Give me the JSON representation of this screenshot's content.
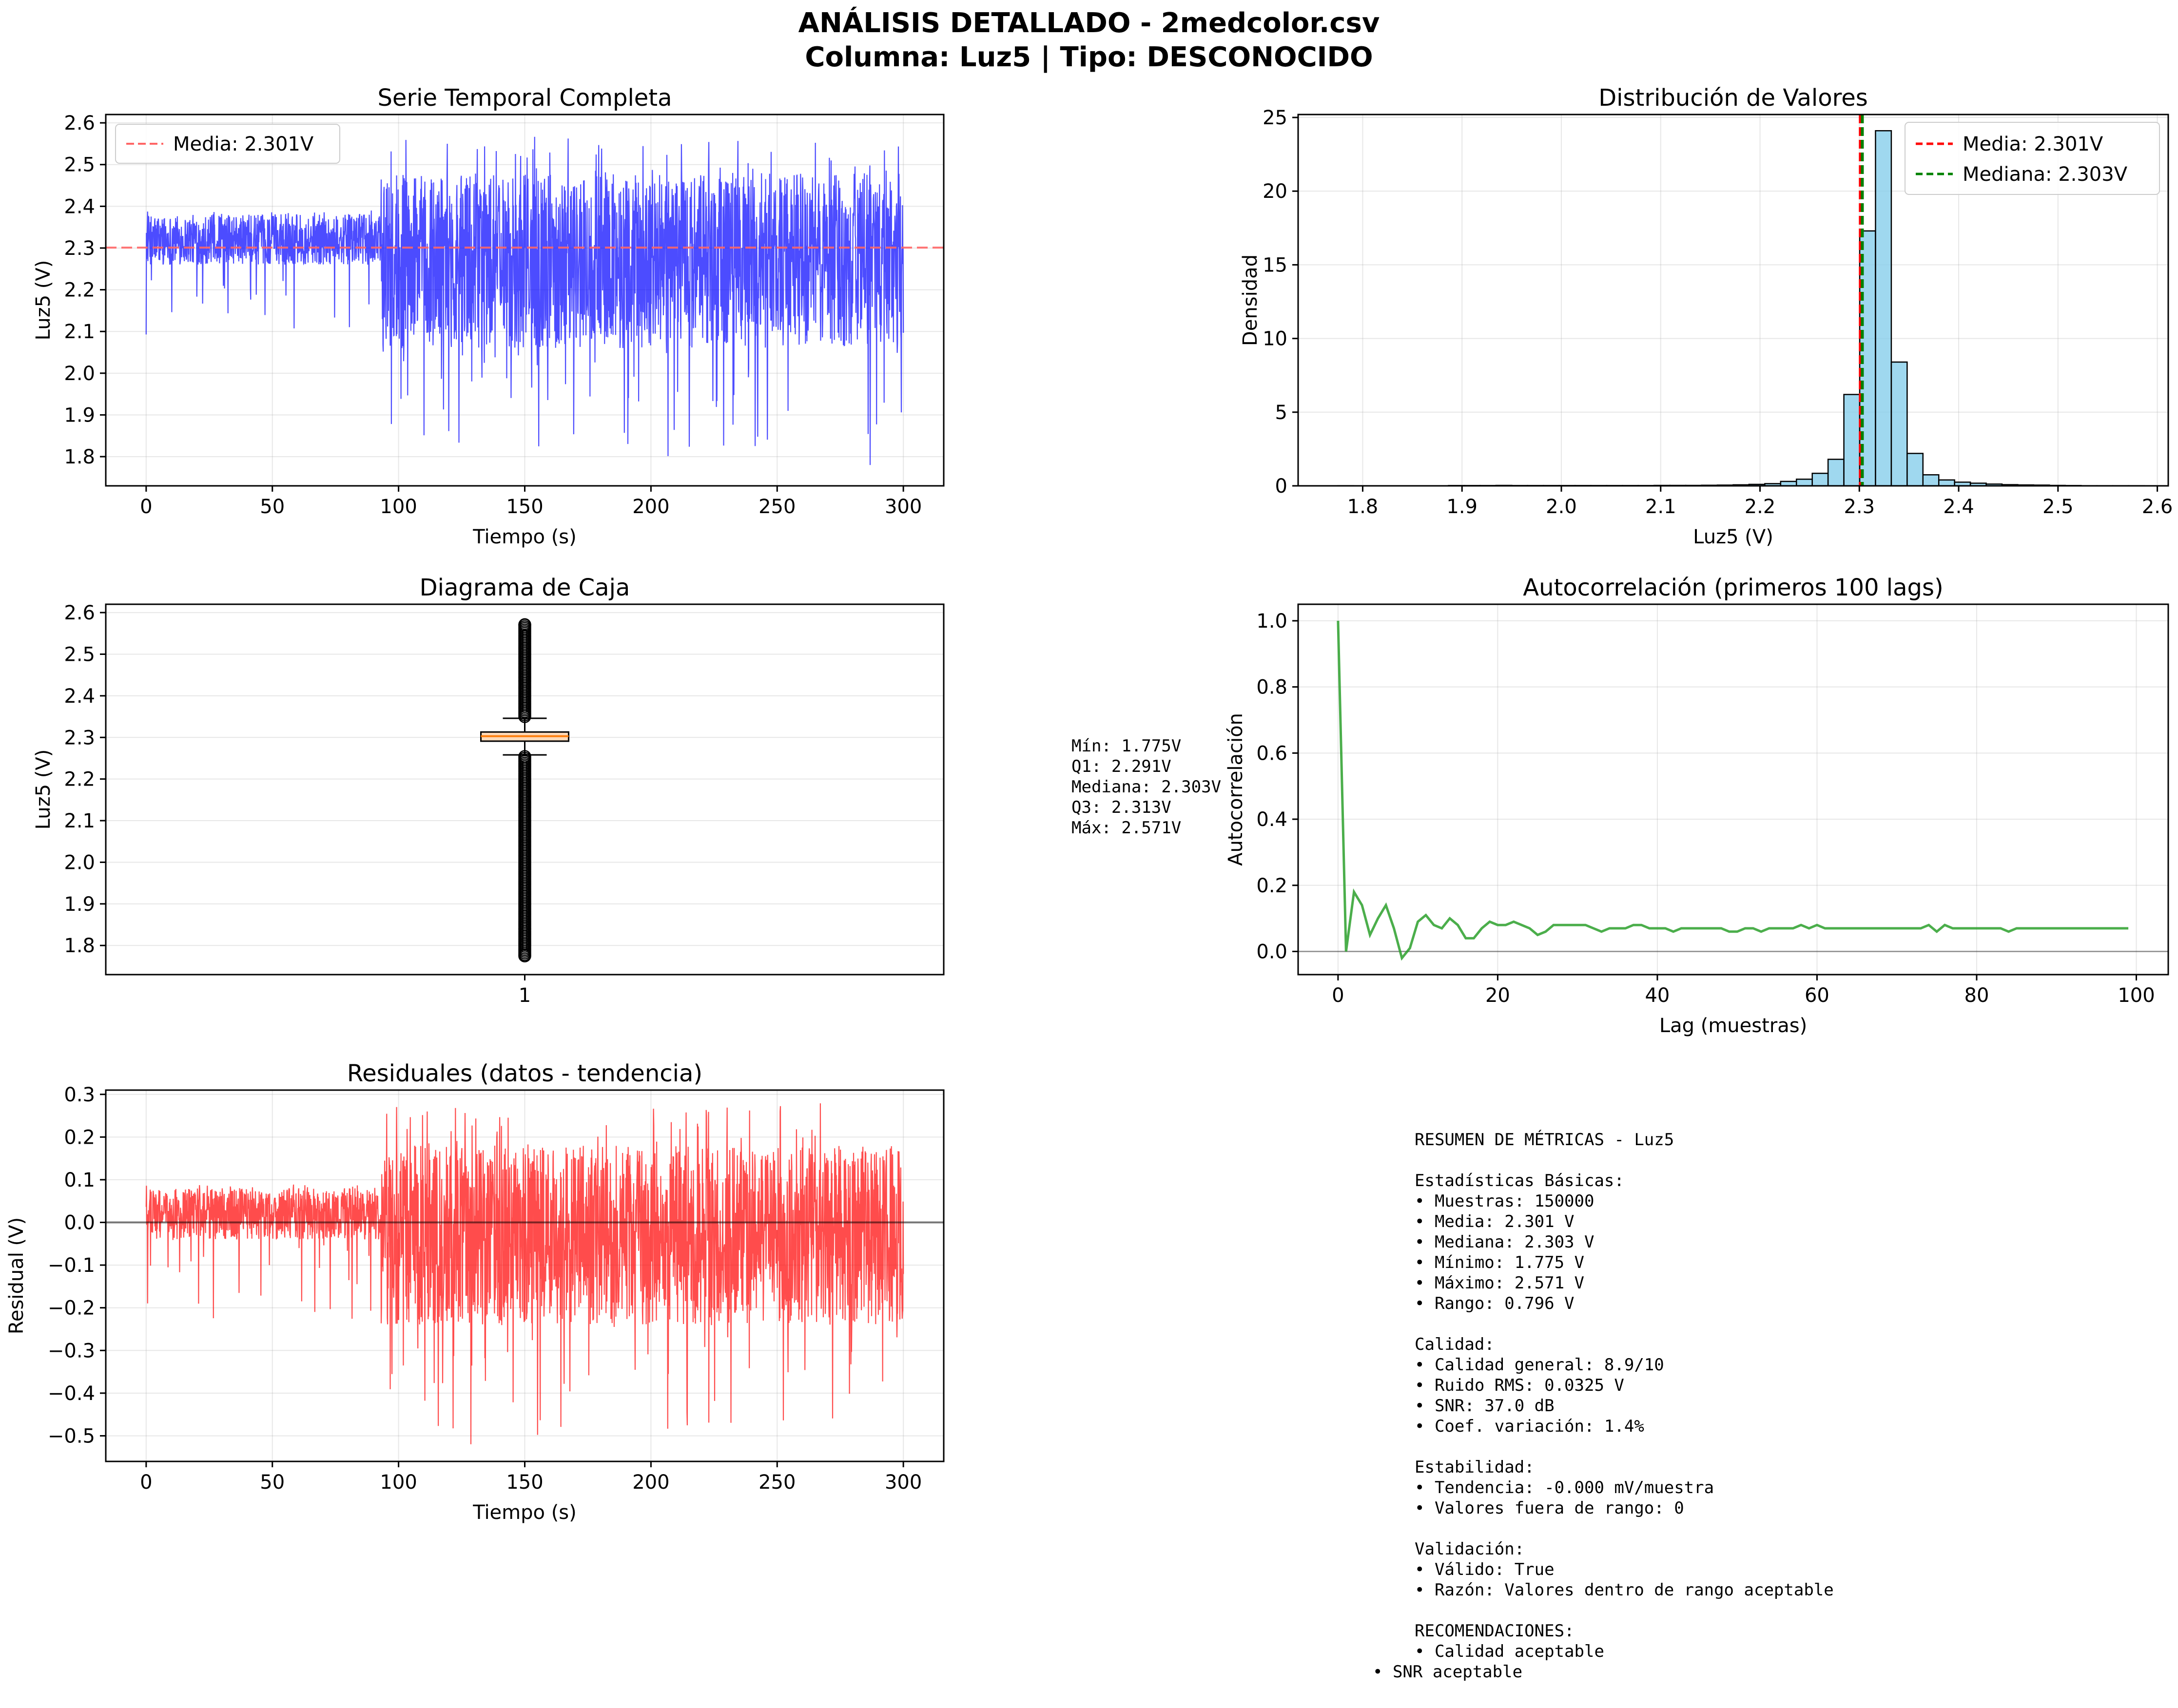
{
  "figure": {
    "title_line1": "ANÁLISIS DETALLADO - 2medcolor.csv",
    "title_line2": "Columna: Luz5 | Tipo: DESCONOCIDO"
  },
  "chart_data": [
    {
      "id": "series",
      "type": "line",
      "title": "Serie Temporal Completa",
      "xlabel": "Tiempo (s)",
      "ylabel": "Luz5 (V)",
      "xlim": [
        -16,
        316
      ],
      "ylim": [
        1.73,
        2.62
      ],
      "xticks": [
        0,
        50,
        100,
        150,
        200,
        250,
        300
      ],
      "yticks": [
        1.8,
        1.9,
        2.0,
        2.1,
        2.2,
        2.3,
        2.4,
        2.5,
        2.6
      ],
      "grid": true,
      "legend_position": "upper-left",
      "series": [
        {
          "name": "Media: 2.301V",
          "kind": "hline",
          "value": 2.301,
          "color": "#ff6666",
          "style": "dashed"
        },
        {
          "kind": "noisy-signal",
          "color": "#0000ff",
          "x_start": 0,
          "x_end": 300,
          "samples": 150000,
          "segments": [
            {
              "x": [
                0,
                93
              ],
              "center": 2.301,
              "band": [
                2.26,
                2.38
              ],
              "min": 2.09,
              "max": 2.39
            },
            {
              "x": [
                93,
                300
              ],
              "center": 2.301,
              "band": [
                2.06,
                2.48
              ],
              "min": 1.775,
              "max": 2.571
            }
          ]
        }
      ]
    },
    {
      "id": "hist",
      "type": "bar",
      "title": "Distribución de Valores",
      "xlabel": "Luz5 (V)",
      "ylabel": "Densidad",
      "xlim": [
        1.735,
        2.611
      ],
      "ylim": [
        0,
        25.2
      ],
      "xticks": [
        1.8,
        1.9,
        2.0,
        2.1,
        2.2,
        2.3,
        2.4,
        2.5,
        2.6
      ],
      "yticks": [
        0,
        5,
        10,
        15,
        20,
        25
      ],
      "grid": true,
      "legend_position": "upper-right",
      "bin_start": 1.775,
      "bin_width": 0.01592,
      "values": [
        0.01,
        0,
        0,
        0,
        0,
        0,
        0,
        0.02,
        0.02,
        0.02,
        0.03,
        0.02,
        0.02,
        0.02,
        0.02,
        0.02,
        0.02,
        0.02,
        0.02,
        0.02,
        0.03,
        0.03,
        0.03,
        0.04,
        0.05,
        0.07,
        0.1,
        0.15,
        0.3,
        0.45,
        0.85,
        1.8,
        6.2,
        17.3,
        24.1,
        8.4,
        2.2,
        0.75,
        0.4,
        0.25,
        0.18,
        0.12,
        0.08,
        0.06,
        0.05,
        0.03,
        0.02,
        0.01,
        0.01,
        0.01,
        0.01
      ],
      "bar_color": "#87ceeb",
      "vlines": [
        {
          "name": "Media: 2.301V",
          "value": 2.301,
          "color": "#ff0000"
        },
        {
          "name": "Mediana: 2.303V",
          "value": 2.303,
          "color": "#008000"
        }
      ]
    },
    {
      "id": "box",
      "type": "box",
      "title": "Diagrama de Caja",
      "ylabel": "Luz5 (V)",
      "ylim": [
        1.73,
        2.62
      ],
      "yticks": [
        1.8,
        1.9,
        2.0,
        2.1,
        2.2,
        2.3,
        2.4,
        2.5,
        2.6
      ],
      "xticks": [
        "1"
      ],
      "grid": true,
      "stats": {
        "min": 1.775,
        "q1": 2.291,
        "median": 2.303,
        "q3": 2.313,
        "max": 2.571,
        "whisker_low": 2.258,
        "whisker_high": 2.346
      },
      "box_color": "#ffdab9"
    },
    {
      "id": "acf",
      "type": "line",
      "title": "Autocorrelación (primeros 100 lags)",
      "xlabel": "Lag (muestras)",
      "ylabel": "Autocorrelación",
      "xlim": [
        -5,
        104
      ],
      "ylim": [
        -0.07,
        1.05
      ],
      "xticks": [
        0,
        20,
        40,
        60,
        80,
        100
      ],
      "yticks": [
        0.0,
        0.2,
        0.4,
        0.6,
        0.8,
        1.0
      ],
      "grid": true,
      "color": "#2ca02c",
      "values": [
        1.0,
        0.0,
        0.18,
        0.14,
        0.05,
        0.1,
        0.14,
        0.07,
        -0.02,
        0.01,
        0.09,
        0.11,
        0.08,
        0.07,
        0.1,
        0.08,
        0.04,
        0.04,
        0.07,
        0.09,
        0.08,
        0.08,
        0.09,
        0.08,
        0.07,
        0.05,
        0.06,
        0.08,
        0.08,
        0.08,
        0.08,
        0.08,
        0.07,
        0.06,
        0.07,
        0.07,
        0.07,
        0.08,
        0.08,
        0.07,
        0.07,
        0.07,
        0.06,
        0.07,
        0.07,
        0.07,
        0.07,
        0.07,
        0.07,
        0.06,
        0.06,
        0.07,
        0.07,
        0.06,
        0.07,
        0.07,
        0.07,
        0.07,
        0.08,
        0.07,
        0.08,
        0.07,
        0.07,
        0.07,
        0.07,
        0.07,
        0.07,
        0.07,
        0.07,
        0.07,
        0.07,
        0.07,
        0.07,
        0.07,
        0.08,
        0.06,
        0.08,
        0.07,
        0.07,
        0.07,
        0.07,
        0.07,
        0.07,
        0.07,
        0.06,
        0.07,
        0.07,
        0.07,
        0.07,
        0.07,
        0.07,
        0.07,
        0.07,
        0.07,
        0.07,
        0.07,
        0.07,
        0.07,
        0.07,
        0.07
      ]
    },
    {
      "id": "resid",
      "type": "line",
      "title": "Residuales (datos - tendencia)",
      "xlabel": "Tiempo (s)",
      "ylabel": "Residual (V)",
      "xlim": [
        -16,
        316
      ],
      "ylim": [
        -0.56,
        0.31
      ],
      "xticks": [
        0,
        50,
        100,
        150,
        200,
        250,
        300
      ],
      "yticks": [
        -0.5,
        -0.4,
        -0.3,
        -0.2,
        -0.1,
        0.0,
        0.1,
        0.2,
        0.3
      ],
      "grid": true,
      "hline": 0.0,
      "series": [
        {
          "kind": "noisy-signal",
          "color": "#ff0000",
          "x_start": 0,
          "x_end": 300,
          "segments": [
            {
              "x": [
                0,
                93
              ],
              "center": 0.0,
              "band": [
                -0.04,
                0.08
              ],
              "min": -0.23,
              "max": 0.09
            },
            {
              "x": [
                93,
                300
              ],
              "center": 0.0,
              "band": [
                -0.24,
                0.18
              ],
              "min": -0.52,
              "max": 0.28
            }
          ]
        }
      ]
    }
  ],
  "box_stats_text": [
    "Mín: 1.775V",
    "Q1: 2.291V",
    "Mediana: 2.303V",
    "Q3: 2.313V",
    "Máx: 2.571V"
  ],
  "summary_text": [
    "RESUMEN DE MÉTRICAS - Luz5",
    "",
    "Estadísticas Básicas:",
    "• Muestras: 150000",
    "• Media: 2.301 V",
    "• Mediana: 2.303 V",
    "• Mínimo: 1.775 V",
    "• Máximo: 2.571 V",
    "• Rango: 0.796 V",
    "",
    "Calidad:",
    "• Calidad general: 8.9/10",
    "• Ruido RMS: 0.0325 V",
    "• SNR: 37.0 dB",
    "• Coef. variación: 1.4%",
    "",
    "Estabilidad:",
    "• Tendencia: -0.000 mV/muestra",
    "• Valores fuera de rango: 0",
    "",
    "Validación:",
    "• Válido: True",
    "• Razón: Valores dentro de rango aceptable",
    "",
    "RECOMENDACIONES:",
    "• Calidad aceptable"
  ],
  "summary_last_line": "• SNR aceptable"
}
